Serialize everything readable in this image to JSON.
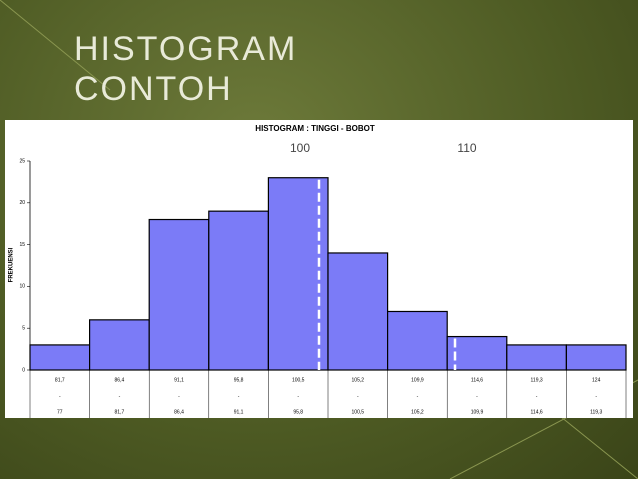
{
  "slide_title": [
    "HISTOGRAM",
    "CONTOH"
  ],
  "chart_data": {
    "type": "bar",
    "title": "HISTOGRAM : TINGGI - BOBOT",
    "y_label": "FREKUENSI",
    "categories": [
      [
        "81,7",
        "-",
        "77"
      ],
      [
        "86,4",
        "-",
        "81,7"
      ],
      [
        "91,1",
        "-",
        "86,4"
      ],
      [
        "95,8",
        "-",
        "91,1"
      ],
      [
        "100,5",
        "-",
        "95,8"
      ],
      [
        "105,2",
        "-",
        "100,5"
      ],
      [
        "109,9",
        "-",
        "105,2"
      ],
      [
        "114,6",
        "-",
        "109,9"
      ],
      [
        "119,3",
        "-",
        "114,6"
      ],
      [
        "124",
        "-",
        "119,3"
      ]
    ],
    "values": [
      3,
      6,
      18,
      19,
      23,
      14,
      7,
      4,
      3,
      3
    ],
    "color": "#7b7bf7",
    "ylim": [
      0,
      25
    ],
    "yticks": [
      0,
      5,
      10,
      15,
      20,
      25
    ],
    "annotations": [
      "100",
      "110"
    ]
  }
}
